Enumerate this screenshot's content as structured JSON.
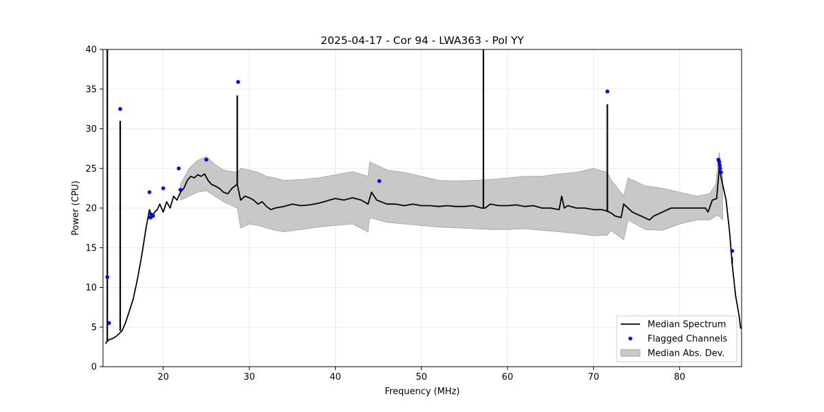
{
  "chart_data": {
    "type": "line",
    "title": "2025-04-17 - Cor 94 - LWA363 - Pol YY",
    "xlabel": "Frequency (MHz)",
    "ylabel": "Power (CPU)",
    "xlim": [
      13.0,
      87.2
    ],
    "ylim": [
      0,
      40
    ],
    "xticks": [
      20,
      30,
      40,
      50,
      60,
      70,
      80
    ],
    "yticks": [
      0,
      5,
      10,
      15,
      20,
      25,
      30,
      35,
      40
    ],
    "grid": true,
    "legend_position": "lower-right",
    "colors": {
      "median": "#000000",
      "flagged": "#0000ff",
      "band_fill": "#c8c8c8",
      "band_edge": "#a0a0a0"
    },
    "series": [
      {
        "name": "Median Spectrum",
        "kind": "line",
        "x": [
          13.3,
          13.5,
          13.7,
          14.0,
          14.5,
          15.2,
          15.6,
          16.0,
          16.5,
          17.0,
          17.5,
          18.0,
          18.4,
          18.7,
          19.0,
          19.3,
          19.6,
          20.0,
          20.4,
          20.8,
          21.2,
          21.6,
          22.0,
          22.4,
          22.8,
          23.2,
          23.6,
          24.0,
          24.4,
          24.8,
          25.2,
          25.6,
          26.0,
          26.5,
          27.0,
          27.5,
          28.0,
          28.6,
          29.0,
          29.5,
          30.0,
          30.5,
          31.0,
          31.5,
          32.0,
          32.5,
          33.0,
          34.0,
          35.0,
          36.0,
          37.0,
          38.0,
          38.7,
          39.3,
          40.0,
          41.0,
          42.0,
          43.0,
          43.8,
          44.2,
          44.8,
          45.3,
          46.0,
          47.0,
          48.0,
          49.0,
          50.0,
          51.0,
          52.0,
          53.0,
          54.0,
          55.0,
          56.0,
          57.0,
          57.4,
          58.0,
          59.0,
          60.0,
          61.0,
          62.0,
          63.0,
          64.0,
          65.0,
          66.0,
          66.3,
          66.6,
          67.0,
          68.0,
          69.0,
          70.0,
          71.0,
          71.6,
          72.0,
          72.5,
          73.2,
          73.5,
          74.5,
          75.5,
          76.5,
          77.0,
          78.0,
          79.0,
          80.0,
          81.0,
          82.0,
          83.0,
          83.3,
          83.8,
          84.3,
          84.6,
          85.0,
          85.4,
          85.8,
          86.1,
          86.5,
          86.9,
          87.1
        ],
        "y": [
          2.9,
          3.2,
          3.4,
          3.5,
          3.8,
          4.5,
          5.5,
          6.8,
          8.5,
          11.0,
          14.0,
          17.5,
          19.8,
          18.8,
          19.5,
          19.8,
          20.5,
          19.5,
          20.8,
          20.0,
          21.5,
          21.0,
          22.0,
          22.5,
          23.5,
          24.0,
          23.8,
          24.2,
          24.0,
          24.3,
          23.5,
          23.0,
          22.8,
          22.5,
          22.0,
          21.8,
          22.5,
          23.0,
          21.0,
          21.5,
          21.3,
          21.0,
          20.5,
          20.8,
          20.2,
          19.8,
          20.0,
          20.2,
          20.5,
          20.3,
          20.4,
          20.6,
          20.8,
          21.0,
          21.2,
          21.0,
          21.3,
          21.0,
          20.5,
          22.0,
          21.0,
          20.8,
          20.5,
          20.5,
          20.3,
          20.5,
          20.3,
          20.3,
          20.2,
          20.3,
          20.2,
          20.2,
          20.3,
          20.0,
          20.0,
          20.5,
          20.3,
          20.3,
          20.4,
          20.2,
          20.3,
          20.0,
          20.0,
          19.8,
          21.5,
          20.0,
          20.3,
          20.0,
          20.0,
          19.8,
          19.8,
          19.6,
          19.4,
          19.0,
          18.8,
          20.5,
          19.5,
          19.0,
          18.5,
          19.0,
          19.5,
          20.0,
          20.0,
          20.0,
          20.0,
          20.0,
          19.5,
          21.0,
          21.2,
          25.0,
          23.0,
          21.0,
          17.0,
          13.0,
          9.0,
          6.5,
          4.8
        ]
      },
      {
        "name": "Flagged Channels",
        "kind": "scatter",
        "x": [
          13.5,
          13.7,
          15.0,
          18.4,
          18.5,
          18.6,
          18.8,
          20.0,
          21.8,
          22.0,
          25.0,
          28.7,
          45.1,
          71.6,
          84.5,
          84.6,
          84.65,
          84.7,
          84.8,
          86.1
        ],
        "y": [
          11.3,
          5.5,
          32.5,
          22.0,
          18.8,
          19.2,
          19.0,
          22.5,
          25.0,
          22.3,
          26.1,
          35.9,
          23.4,
          34.7,
          26.1,
          25.8,
          25.4,
          25.0,
          24.5,
          14.6
        ]
      },
      {
        "name": "Median Abs. Dev.",
        "kind": "band",
        "x": [
          22.0,
          23.0,
          24.0,
          25.0,
          26.0,
          27.0,
          28.6,
          29.0,
          30.0,
          31.0,
          32.0,
          33.0,
          34.0,
          36.0,
          38.0,
          40.0,
          42.0,
          43.8,
          44.0,
          46.0,
          48.0,
          50.0,
          52.0,
          54.0,
          56.0,
          58.0,
          60.0,
          62.0,
          64.0,
          66.0,
          68.0,
          70.0,
          71.6,
          72.0,
          73.5,
          74.0,
          76.0,
          78.0,
          80.0,
          82.0,
          83.5,
          84.2,
          84.6,
          85.0
        ],
        "lower": [
          21.0,
          21.5,
          22.0,
          22.2,
          21.5,
          20.8,
          20.0,
          17.5,
          18.0,
          17.8,
          17.5,
          17.2,
          17.0,
          17.3,
          17.6,
          17.8,
          18.0,
          17.0,
          18.8,
          18.2,
          18.0,
          17.8,
          17.6,
          17.5,
          17.4,
          17.3,
          17.3,
          17.4,
          17.2,
          17.0,
          16.8,
          16.5,
          16.6,
          17.2,
          16.0,
          18.5,
          17.3,
          17.2,
          18.0,
          18.5,
          18.5,
          19.0,
          19.0,
          18.5
        ],
        "upper": [
          23.0,
          25.0,
          26.0,
          26.5,
          25.5,
          24.8,
          24.5,
          25.0,
          24.8,
          24.5,
          24.0,
          23.8,
          23.5,
          23.6,
          23.8,
          24.2,
          24.6,
          24.0,
          25.8,
          24.8,
          24.5,
          24.0,
          23.5,
          23.4,
          23.5,
          23.6,
          23.8,
          24.0,
          24.0,
          24.3,
          24.5,
          25.0,
          24.5,
          23.6,
          21.5,
          23.8,
          22.8,
          22.5,
          22.0,
          21.5,
          21.8,
          23.0,
          27.0,
          24.0
        ]
      }
    ],
    "spikes": [
      {
        "x": 13.5,
        "y": 40.0
      },
      {
        "x": 15.0,
        "y": 31.0
      },
      {
        "x": 28.6,
        "y": 34.2
      },
      {
        "x": 57.2,
        "y": 40.0
      },
      {
        "x": 71.6,
        "y": 33.1
      },
      {
        "x": 86.1,
        "y": 13.8
      }
    ],
    "legend": [
      {
        "label": "Median Spectrum",
        "kind": "line"
      },
      {
        "label": "Flagged Channels",
        "kind": "marker"
      },
      {
        "label": "Median Abs. Dev.",
        "kind": "patch"
      }
    ]
  }
}
